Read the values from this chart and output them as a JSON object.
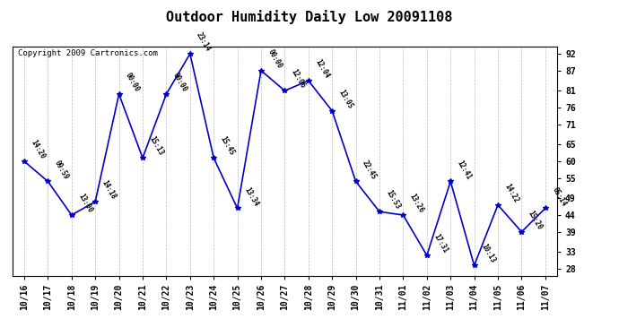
{
  "title": "Outdoor Humidity Daily Low 20091108",
  "copyright": "Copyright 2009 Cartronics.com",
  "x_labels": [
    "10/16",
    "10/17",
    "10/18",
    "10/19",
    "10/20",
    "10/21",
    "10/22",
    "10/23",
    "10/24",
    "10/25",
    "10/26",
    "10/27",
    "10/28",
    "10/29",
    "10/30",
    "10/31",
    "11/01",
    "11/02",
    "11/03",
    "11/04",
    "11/05",
    "11/06",
    "11/07"
  ],
  "y_values": [
    60,
    54,
    44,
    48,
    80,
    61,
    80,
    92,
    61,
    46,
    87,
    81,
    84,
    75,
    54,
    45,
    44,
    32,
    54,
    29,
    47,
    39,
    46
  ],
  "time_labels": [
    "14:20",
    "09:59",
    "13:00",
    "14:18",
    "00:00",
    "15:13",
    "00:00",
    "23:14",
    "15:45",
    "13:34",
    "00:00",
    "12:06",
    "12:04",
    "13:05",
    "22:45",
    "15:53",
    "13:26",
    "17:31",
    "12:41",
    "10:13",
    "14:22",
    "15:20",
    "05:14"
  ],
  "line_color": "#0000CC",
  "marker_color": "#0000CC",
  "bg_color": "#FFFFFF",
  "plot_bg_color": "#FFFFFF",
  "grid_color": "#AAAAAA",
  "y_right_ticks": [
    28,
    33,
    39,
    44,
    49,
    55,
    60,
    65,
    71,
    76,
    81,
    87,
    92
  ],
  "ylim": [
    26,
    94
  ],
  "title_fontsize": 11,
  "label_fontsize": 7,
  "copyright_fontsize": 6.5
}
